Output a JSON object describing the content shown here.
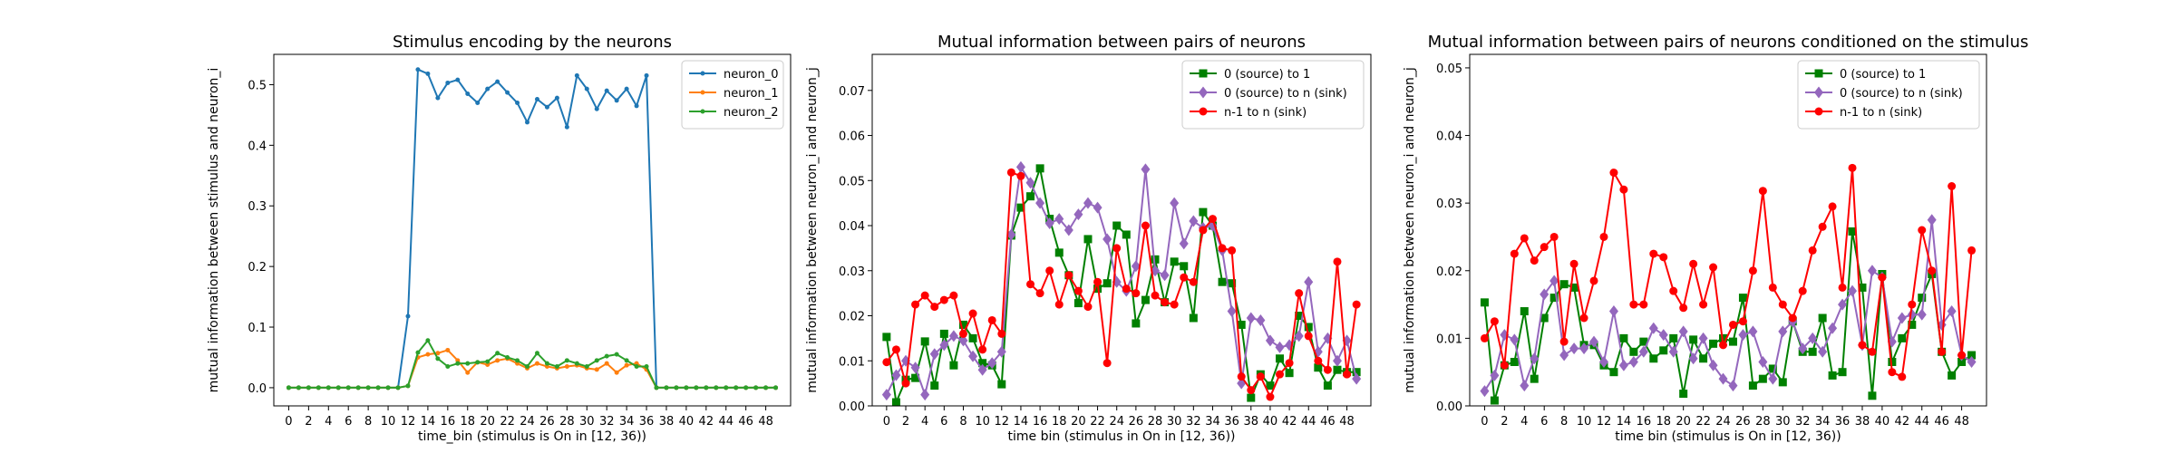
{
  "chart_data": [
    {
      "type": "line",
      "title": "Stimulus encoding by the neurons",
      "xlabel": "time_bin (stimulus is On in [12, 36))",
      "ylabel": "mutual information between stimulus and neuron_i",
      "xlim": [
        -1.5,
        50.5
      ],
      "ylim": [
        -0.03,
        0.55
      ],
      "xticks": [
        0,
        2,
        4,
        6,
        8,
        10,
        12,
        14,
        16,
        18,
        20,
        22,
        24,
        26,
        28,
        30,
        32,
        34,
        36,
        38,
        40,
        42,
        44,
        46,
        48
      ],
      "yticks": [
        0.0,
        0.1,
        0.2,
        0.3,
        0.4,
        0.5
      ],
      "ytick_labels": [
        "0.0",
        "0.1",
        "0.2",
        "0.3",
        "0.4",
        "0.5"
      ],
      "legend_position": "top-right",
      "x": [
        0,
        1,
        2,
        3,
        4,
        5,
        6,
        7,
        8,
        9,
        10,
        11,
        12,
        13,
        14,
        15,
        16,
        17,
        18,
        19,
        20,
        21,
        22,
        23,
        24,
        25,
        26,
        27,
        28,
        29,
        30,
        31,
        32,
        33,
        34,
        35,
        36,
        37,
        38,
        39,
        40,
        41,
        42,
        43,
        44,
        45,
        46,
        47,
        48,
        49
      ],
      "series": [
        {
          "name": "neuron_0",
          "color": "#1f77b4",
          "marker": "dot",
          "values": [
            0,
            0,
            0,
            0,
            0,
            0,
            0,
            0,
            0,
            0,
            0,
            0,
            0.118,
            0.525,
            0.518,
            0.478,
            0.503,
            0.508,
            0.485,
            0.47,
            0.493,
            0.505,
            0.487,
            0.47,
            0.438,
            0.476,
            0.463,
            0.478,
            0.43,
            0.515,
            0.493,
            0.46,
            0.49,
            0.474,
            0.493,
            0.465,
            0.515,
            0,
            0,
            0,
            0,
            0,
            0,
            0,
            0,
            0,
            0,
            0,
            0,
            0
          ]
        },
        {
          "name": "neuron_1",
          "color": "#ff7f0e",
          "marker": "dot",
          "values": [
            0,
            0,
            0,
            0,
            0,
            0,
            0,
            0,
            0,
            0,
            0,
            0,
            0.003,
            0.05,
            0.055,
            0.057,
            0.062,
            0.045,
            0.025,
            0.042,
            0.038,
            0.045,
            0.048,
            0.04,
            0.032,
            0.04,
            0.035,
            0.032,
            0.035,
            0.037,
            0.032,
            0.03,
            0.04,
            0.025,
            0.037,
            0.04,
            0.03,
            0,
            0,
            0,
            0,
            0,
            0,
            0,
            0,
            0,
            0,
            0,
            0,
            0
          ]
        },
        {
          "name": "neuron_2",
          "color": "#2ca02c",
          "marker": "dot",
          "values": [
            0,
            0,
            0,
            0,
            0,
            0,
            0,
            0,
            0,
            0,
            0,
            0,
            0.003,
            0.058,
            0.078,
            0.048,
            0.035,
            0.04,
            0.04,
            0.042,
            0.043,
            0.057,
            0.05,
            0.045,
            0.035,
            0.057,
            0.04,
            0.035,
            0.045,
            0.04,
            0.035,
            0.045,
            0.052,
            0.055,
            0.045,
            0.035,
            0.035,
            0,
            0,
            0,
            0,
            0,
            0,
            0,
            0,
            0,
            0,
            0,
            0,
            0
          ]
        }
      ]
    },
    {
      "type": "line",
      "title": "Mutual information between pairs of neurons",
      "xlabel": "time bin (stimulus in On in [12, 36))",
      "ylabel": "mutual information between neuron_i and neuron_j",
      "xlim": [
        -1.5,
        50.5
      ],
      "ylim": [
        0,
        0.078
      ],
      "xticks": [
        0,
        2,
        4,
        6,
        8,
        10,
        12,
        14,
        16,
        18,
        20,
        22,
        24,
        26,
        28,
        30,
        32,
        34,
        36,
        38,
        40,
        42,
        44,
        46,
        48
      ],
      "yticks": [
        0.0,
        0.01,
        0.02,
        0.03,
        0.04,
        0.05,
        0.06,
        0.07
      ],
      "ytick_labels": [
        "0.00",
        "0.01",
        "0.02",
        "0.03",
        "0.04",
        "0.05",
        "0.06",
        "0.07"
      ],
      "legend_position": "top-right",
      "x": [
        0,
        1,
        2,
        3,
        4,
        5,
        6,
        7,
        8,
        9,
        10,
        11,
        12,
        13,
        14,
        15,
        16,
        17,
        18,
        19,
        20,
        21,
        22,
        23,
        24,
        25,
        26,
        27,
        28,
        29,
        30,
        31,
        32,
        33,
        34,
        35,
        36,
        37,
        38,
        39,
        40,
        41,
        42,
        43,
        44,
        45,
        46,
        47,
        48,
        49
      ],
      "series": [
        {
          "name": "0 (source) to 1",
          "color": "#008000",
          "marker": "square",
          "values": [
            0.0153,
            0.0008,
            0.0058,
            0.0062,
            0.0143,
            0.0045,
            0.016,
            0.009,
            0.018,
            0.015,
            0.0095,
            0.009,
            0.0048,
            0.0378,
            0.044,
            0.0465,
            0.0527,
            0.0415,
            0.034,
            0.029,
            0.0228,
            0.037,
            0.026,
            0.0272,
            0.04,
            0.038,
            0.0183,
            0.0235,
            0.0325,
            0.023,
            0.032,
            0.031,
            0.0195,
            0.043,
            0.04,
            0.0275,
            0.0272,
            0.018,
            0.0018,
            0.007,
            0.0045,
            0.0105,
            0.0073,
            0.02,
            0.0175,
            0.0085,
            0.0045,
            0.008,
            0.0075,
            0.0075
          ]
        },
        {
          "name": "0 (source) to n (sink)",
          "color": "#9467bd",
          "marker": "diamond",
          "values": [
            0.0025,
            0.0068,
            0.01,
            0.0085,
            0.0025,
            0.0115,
            0.0135,
            0.0155,
            0.0145,
            0.011,
            0.008,
            0.0095,
            0.012,
            0.038,
            0.053,
            0.0495,
            0.045,
            0.0405,
            0.0415,
            0.039,
            0.0425,
            0.045,
            0.044,
            0.037,
            0.0275,
            0.0255,
            0.031,
            0.0525,
            0.03,
            0.029,
            0.045,
            0.036,
            0.041,
            0.0395,
            0.04,
            0.0345,
            0.021,
            0.005,
            0.0195,
            0.019,
            0.0145,
            0.013,
            0.0135,
            0.0155,
            0.0275,
            0.012,
            0.015,
            0.01,
            0.0145,
            0.006
          ]
        },
        {
          "name": "n-1 to n (sink)",
          "color": "#ff0000",
          "marker": "circle",
          "values": [
            0.0097,
            0.0125,
            0.005,
            0.0225,
            0.0245,
            0.022,
            0.0235,
            0.0245,
            0.016,
            0.0205,
            0.0125,
            0.019,
            0.016,
            0.0518,
            0.051,
            0.027,
            0.025,
            0.03,
            0.0225,
            0.029,
            0.0255,
            0.022,
            0.0275,
            0.0095,
            0.035,
            0.026,
            0.025,
            0.04,
            0.0245,
            0.023,
            0.0225,
            0.0285,
            0.0275,
            0.039,
            0.0415,
            0.035,
            0.0345,
            0.0065,
            0.0035,
            0.0065,
            0.002,
            0.007,
            0.0095,
            0.025,
            0.0155,
            0.01,
            0.008,
            0.032,
            0.007,
            0.0225
          ]
        }
      ]
    },
    {
      "type": "line",
      "title": "Mutual information between pairs of neurons conditioned on the stimulus",
      "xlabel": "time bin (stimulus is On in [12, 36))",
      "ylabel": "mutual information between neuron_i and neuron_j",
      "xlim": [
        -1.5,
        50.5
      ],
      "ylim": [
        0,
        0.052
      ],
      "xticks": [
        0,
        2,
        4,
        6,
        8,
        10,
        12,
        14,
        16,
        18,
        20,
        22,
        24,
        26,
        28,
        30,
        32,
        34,
        36,
        38,
        40,
        42,
        44,
        46,
        48
      ],
      "yticks": [
        0.0,
        0.01,
        0.02,
        0.03,
        0.04,
        0.05
      ],
      "ytick_labels": [
        "0.00",
        "0.01",
        "0.02",
        "0.03",
        "0.04",
        "0.05"
      ],
      "legend_position": "top-right",
      "x": [
        0,
        1,
        2,
        3,
        4,
        5,
        6,
        7,
        8,
        9,
        10,
        11,
        12,
        13,
        14,
        15,
        16,
        17,
        18,
        19,
        20,
        21,
        22,
        23,
        24,
        25,
        26,
        27,
        28,
        29,
        30,
        31,
        32,
        33,
        34,
        35,
        36,
        37,
        38,
        39,
        40,
        41,
        42,
        43,
        44,
        45,
        46,
        47,
        48,
        49
      ],
      "series": [
        {
          "name": "0 (source) to 1",
          "color": "#008000",
          "marker": "square",
          "values": [
            0.0153,
            0.0008,
            0.006,
            0.0065,
            0.014,
            0.004,
            0.013,
            0.016,
            0.018,
            0.0175,
            0.009,
            0.009,
            0.006,
            0.005,
            0.01,
            0.008,
            0.0095,
            0.007,
            0.0082,
            0.01,
            0.0018,
            0.0098,
            0.007,
            0.0092,
            0.01,
            0.0095,
            0.016,
            0.003,
            0.004,
            0.0055,
            0.0035,
            0.0125,
            0.008,
            0.008,
            0.013,
            0.0045,
            0.005,
            0.0258,
            0.0175,
            0.0015,
            0.0195,
            0.0065,
            0.01,
            0.012,
            0.016,
            0.0195,
            0.008,
            0.0045,
            0.0065,
            0.0075
          ]
        },
        {
          "name": "0 (source) to n (sink)",
          "color": "#9467bd",
          "marker": "diamond",
          "values": [
            0.0022,
            0.0045,
            0.0105,
            0.0098,
            0.003,
            0.007,
            0.0165,
            0.0185,
            0.0075,
            0.0085,
            0.0085,
            0.0095,
            0.0065,
            0.014,
            0.006,
            0.0065,
            0.008,
            0.0115,
            0.0105,
            0.008,
            0.011,
            0.007,
            0.01,
            0.006,
            0.004,
            0.003,
            0.0105,
            0.011,
            0.0065,
            0.004,
            0.011,
            0.0125,
            0.0085,
            0.01,
            0.008,
            0.0115,
            0.015,
            0.017,
            0.009,
            0.02,
            0.019,
            0.0095,
            0.013,
            0.0135,
            0.0135,
            0.0275,
            0.012,
            0.014,
            0.0075,
            0.0065
          ]
        },
        {
          "name": "n-1 to n (sink)",
          "color": "#ff0000",
          "marker": "circle",
          "values": [
            0.01,
            0.0125,
            0.006,
            0.0225,
            0.0248,
            0.0215,
            0.0235,
            0.025,
            0.0095,
            0.021,
            0.013,
            0.0185,
            0.025,
            0.0345,
            0.032,
            0.015,
            0.015,
            0.0225,
            0.022,
            0.017,
            0.0145,
            0.021,
            0.015,
            0.0205,
            0.009,
            0.012,
            0.0125,
            0.02,
            0.0318,
            0.0175,
            0.015,
            0.013,
            0.017,
            0.023,
            0.0265,
            0.0295,
            0.0175,
            0.0352,
            0.009,
            0.008,
            0.019,
            0.005,
            0.0043,
            0.015,
            0.026,
            0.02,
            0.008,
            0.0325,
            0.0075,
            0.023
          ]
        }
      ]
    }
  ]
}
